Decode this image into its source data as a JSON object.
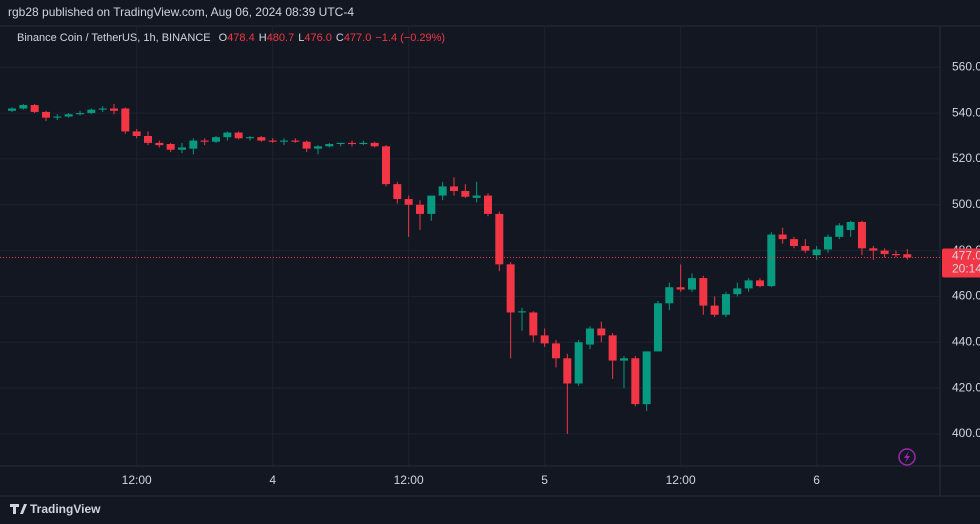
{
  "header": "rgb28 published on TradingView.com, Aug 06, 2024 08:39 UTC-4",
  "footer": "TradingView",
  "chart_data": {
    "type": "candlestick",
    "legend": {
      "symbol": "Binance Coin / TetherUS, 1h, BINANCE",
      "items": [
        {
          "key": "O",
          "value": 478.4
        },
        {
          "key": "H",
          "value": 480.7
        },
        {
          "key": "L",
          "value": {
            "value": 476,
            "label": "476.0"
          }
        },
        {
          "key": "C",
          "value": {
            "value": 477,
            "label": "477.0"
          }
        }
      ],
      "change": "−1.4 (−0.29%)"
    },
    "categories": [
      null,
      null,
      null,
      null,
      null,
      null,
      null,
      null,
      null,
      null,
      null,
      "12:00",
      null,
      null,
      null,
      null,
      null,
      null,
      null,
      null,
      null,
      null,
      null,
      "4",
      null,
      null,
      null,
      null,
      null,
      null,
      null,
      null,
      null,
      null,
      null,
      "12:00",
      null,
      null,
      null,
      null,
      null,
      null,
      null,
      null,
      null,
      null,
      null,
      "5",
      null,
      null,
      null,
      null,
      null,
      null,
      null,
      null,
      null,
      null,
      null,
      "12:00",
      null,
      null,
      null,
      null,
      null,
      null,
      null,
      null,
      null,
      null,
      null,
      "6",
      null,
      null,
      null,
      null,
      null,
      null,
      null,
      null
    ],
    "open": [
      541,
      542,
      543.5,
      540.5,
      538,
      538.5,
      539.5,
      540,
      541.5,
      542,
      542,
      532,
      530,
      527,
      526.5,
      524,
      524.5,
      528,
      527.5,
      529.5,
      531.5,
      529,
      529.5,
      528,
      527.5,
      528,
      527.5,
      524.5,
      525.5,
      526.5,
      527,
      526.5,
      527,
      525.5,
      509,
      502.5,
      500,
      496,
      504,
      508,
      506,
      503,
      504,
      496,
      474,
      453,
      453,
      443,
      439.5,
      433,
      422,
      439,
      446,
      443,
      432,
      433,
      413,
      436,
      457,
      464,
      463,
      468,
      456,
      452,
      461,
      463.5,
      467,
      464.5,
      487,
      485,
      482,
      478,
      480.5,
      486,
      489,
      492.5,
      481,
      480,
      478.5,
      478.4
    ],
    "high": [
      542.5,
      544,
      544,
      541,
      539.5,
      540,
      541,
      542,
      543,
      544,
      542.5,
      533,
      532,
      528,
      527,
      527,
      529,
      529,
      530,
      532,
      532,
      530,
      530,
      529,
      529,
      529,
      528,
      526,
      527,
      527,
      528,
      528,
      527.5,
      526,
      510,
      504,
      502,
      504,
      510,
      512,
      509,
      510,
      505,
      497,
      475,
      455,
      453.5,
      446,
      441,
      435,
      441,
      447,
      449,
      444,
      434,
      434,
      436,
      458,
      466,
      474,
      470,
      469,
      460,
      462,
      466,
      468,
      468,
      488,
      490,
      486,
      485,
      482,
      487,
      492,
      493,
      493,
      482,
      481,
      480,
      480.7
    ],
    "low": [
      540.5,
      541.5,
      540,
      536.5,
      537,
      538,
      539,
      539.5,
      540.5,
      539.5,
      531,
      529,
      526,
      525,
      523,
      522.5,
      522,
      526,
      527,
      528,
      528.5,
      528,
      527.5,
      527,
      526,
      527,
      523,
      522,
      525,
      525.5,
      525.5,
      526,
      525,
      508,
      500.5,
      486,
      489,
      493,
      502,
      504,
      503,
      501,
      495,
      471,
      433,
      445,
      440,
      438,
      429,
      400,
      421,
      437,
      440,
      424,
      420,
      412,
      410,
      436,
      454,
      462,
      462,
      452,
      451,
      451,
      460,
      462,
      464,
      464,
      483,
      481,
      479,
      476,
      479,
      485,
      486,
      478,
      476,
      477,
      477,
      476
    ],
    "close": [
      542,
      543.5,
      540.5,
      538,
      538.5,
      539.5,
      540,
      541.5,
      542,
      541,
      532,
      530,
      527,
      526,
      524,
      525,
      528,
      527.5,
      529.5,
      531.5,
      529,
      529.5,
      528,
      527.5,
      528,
      527.5,
      524.5,
      525.5,
      526.5,
      527,
      526.5,
      527,
      525.5,
      509,
      502.5,
      500,
      496,
      504,
      508,
      506,
      503.5,
      504,
      496,
      474,
      453,
      453.5,
      443,
      439.5,
      433,
      422,
      440,
      446,
      443,
      432,
      433,
      413,
      436,
      457,
      464,
      463,
      468,
      456,
      452,
      461,
      463.5,
      467,
      464.5,
      487,
      485,
      482,
      480,
      480.5,
      486,
      491,
      492.5,
      481,
      480,
      478.5,
      478,
      477
    ],
    "up_color": "#089981",
    "down_color": "#f23645",
    "ylim": [
      386,
      578
    ],
    "yticks": [
      {
        "value": 400,
        "label": "400.0"
      },
      {
        "value": 420,
        "label": "420.0"
      },
      {
        "value": 440,
        "label": "440.0"
      },
      {
        "value": 460,
        "label": "460.0"
      },
      {
        "value": 480,
        "label": "480.0"
      },
      {
        "value": 500,
        "label": "500.0"
      },
      {
        "value": 520,
        "label": "520.0"
      },
      {
        "value": 540,
        "label": "540.0"
      },
      {
        "value": 560,
        "label": "560.0"
      }
    ],
    "grid": true,
    "last_price": {
      "value": 477,
      "label": "477.0"
    },
    "countdown": "20:14"
  }
}
